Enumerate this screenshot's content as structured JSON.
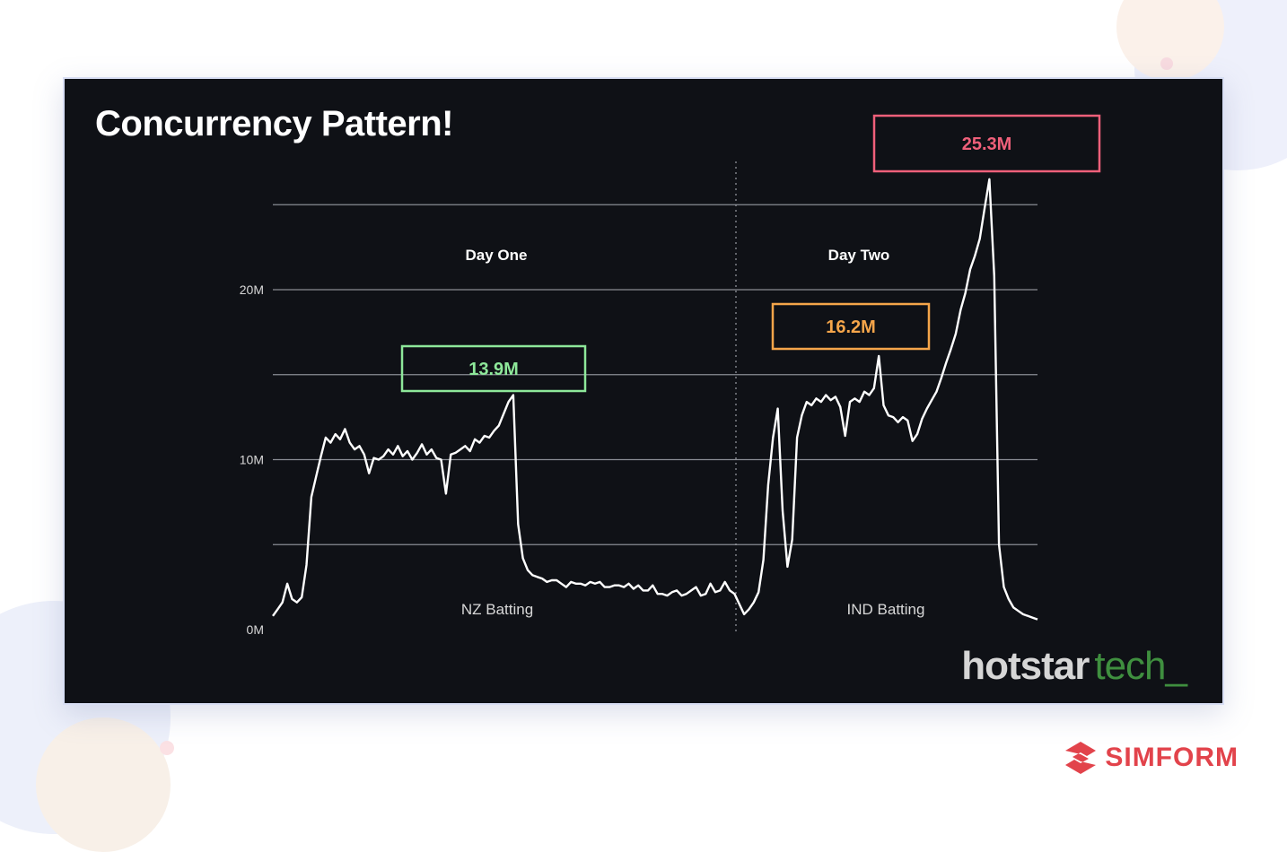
{
  "slide": {
    "title": "Concurrency Pattern!"
  },
  "branding": {
    "hotstar_bold": "hotstar",
    "hotstar_light": "tech_",
    "simform": "SIMFORM",
    "simform_icon": "simform-logo-icon"
  },
  "colors": {
    "slide_bg": "#0f1116",
    "line": "#ffffff",
    "green": "#8ee89a",
    "orange": "#f5a54a",
    "red": "#f0607a",
    "brand_red": "#e2434b",
    "hotstar_green": "#3f8f3f"
  },
  "chart_data": {
    "type": "line",
    "title": "",
    "ylim": [
      0,
      25
    ],
    "y_ticks": [
      {
        "value": 0,
        "label": "0M"
      },
      {
        "value": 10,
        "label": "10M"
      },
      {
        "value": 20,
        "label": "20M"
      }
    ],
    "gridlines": [
      5,
      10,
      15,
      20,
      25
    ],
    "days": [
      "Day One",
      "Day Two"
    ],
    "innings": [
      "NZ Batting",
      "IND Batting"
    ],
    "annotations": [
      {
        "label": "13.9M",
        "value": 13.9,
        "color": "#8ee89a"
      },
      {
        "label": "16.2M",
        "value": 16.2,
        "color": "#f5a54a"
      },
      {
        "label": "25.3M",
        "value": 25.3,
        "color": "#f0607a"
      }
    ],
    "series": [
      {
        "values": [
          0.8,
          1.2,
          1.6,
          2.7,
          1.8,
          1.6,
          1.9,
          3.8,
          7.8,
          9.0,
          10.2,
          11.3,
          11.0,
          11.5,
          11.2,
          11.8,
          11.0,
          10.6,
          10.8,
          10.3,
          9.2,
          10.1,
          10.0,
          10.2,
          10.6,
          10.3,
          10.8,
          10.2,
          10.5,
          10.0,
          10.4,
          10.9,
          10.3,
          10.6,
          10.1,
          10.0,
          8.0,
          10.3,
          10.4,
          10.6,
          10.8,
          10.5,
          11.2,
          11.0,
          11.4,
          11.3,
          11.7,
          12.0,
          12.7,
          13.4,
          13.8,
          6.2,
          4.2,
          3.5,
          3.2,
          3.1,
          3.0,
          2.8,
          2.9,
          2.9,
          2.7,
          2.5,
          2.8,
          2.7,
          2.7,
          2.6,
          2.8,
          2.7,
          2.8,
          2.5,
          2.5,
          2.6,
          2.6,
          2.5,
          2.7,
          2.4,
          2.6,
          2.3,
          2.3,
          2.6,
          2.1,
          2.1,
          2.0,
          2.2,
          2.3,
          2.0,
          2.1,
          2.3,
          2.5,
          2.0,
          2.1,
          2.7,
          2.2,
          2.3,
          2.8,
          2.3,
          2.1,
          1.5,
          0.9,
          1.2,
          1.6,
          2.2,
          4.1,
          8.5,
          11.3,
          13.0,
          7.0,
          3.7,
          5.3,
          11.3,
          12.6,
          13.4,
          13.2,
          13.6,
          13.4,
          13.8,
          13.5,
          13.7,
          13.1,
          11.4,
          13.4,
          13.6,
          13.4,
          14.0,
          13.8,
          14.2,
          16.1,
          13.2,
          12.6,
          12.5,
          12.2,
          12.5,
          12.3,
          11.1,
          11.5,
          12.4,
          13.0,
          13.5,
          14.0,
          14.8,
          15.7,
          16.5,
          17.4,
          18.8,
          19.8,
          21.2,
          22.0,
          23.0,
          24.8,
          26.5,
          20.8,
          5.0,
          2.5,
          1.8,
          1.3,
          1.1,
          0.9,
          0.8,
          0.7,
          0.6
        ]
      }
    ]
  }
}
